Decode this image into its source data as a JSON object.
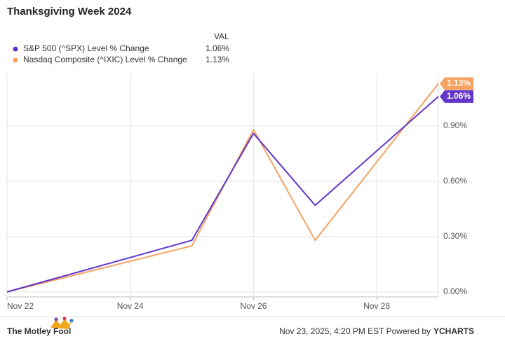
{
  "chart_data": {
    "type": "line",
    "title": "Thanksgiving Week 2024",
    "legend_header": "VAL",
    "x": [
      22,
      25,
      26,
      27,
      29
    ],
    "xlim": [
      22,
      29
    ],
    "xticks": [
      {
        "value": 22,
        "label": "Nov 22"
      },
      {
        "value": 24,
        "label": "Nov 24"
      },
      {
        "value": 26,
        "label": "Nov 26"
      },
      {
        "value": 28,
        "label": "Nov 28"
      }
    ],
    "ylim": [
      -0.027,
      1.185
    ],
    "yticks": [
      {
        "value": 0,
        "label": "0.00%"
      },
      {
        "value": 0.3,
        "label": "0.30%"
      },
      {
        "value": 0.6,
        "label": "0.60%"
      },
      {
        "value": 0.9,
        "label": "0.90%"
      }
    ],
    "grid": true,
    "series": [
      {
        "name": "S&P 500 (^SPX) Level % Change",
        "color": "#6236c8",
        "values": [
          0,
          0.28,
          0.86,
          0.47,
          1.06
        ],
        "value_labels": [
          null,
          null,
          null,
          null,
          "1.06%"
        ]
      },
      {
        "name": "Nasdaq Composite (^IXIC) Level % Change",
        "color": "#f5a263",
        "values": [
          0,
          0.25,
          0.88,
          0.28,
          1.13
        ],
        "value_labels": [
          null,
          null,
          null,
          null,
          "1.13%"
        ]
      }
    ]
  },
  "footer": {
    "brand": "The Motley Fool",
    "timestamp": "Nov 23, 2025, 4:20 PM EST Powered by",
    "provider": "YCHARTS"
  }
}
